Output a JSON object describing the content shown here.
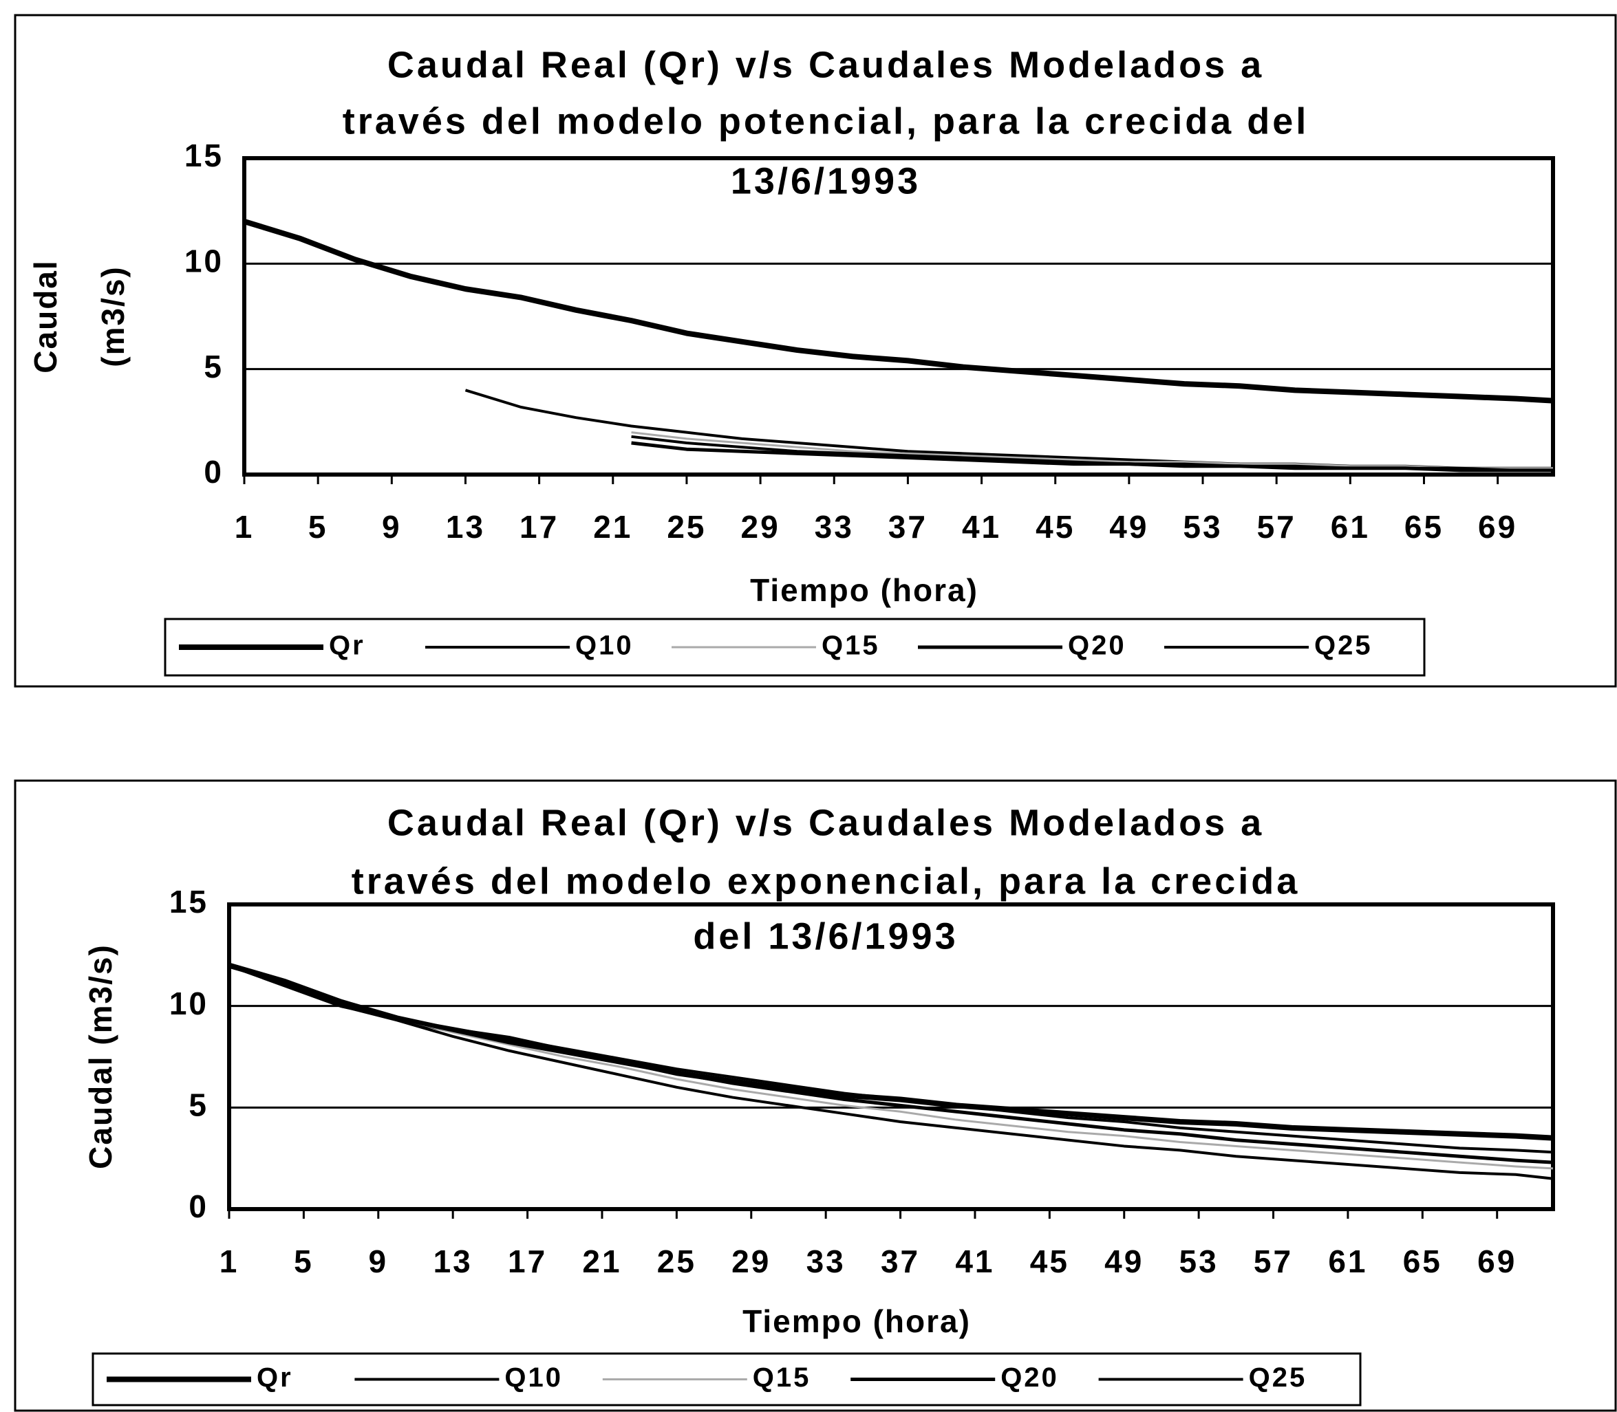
{
  "chart_data": [
    {
      "type": "line",
      "title": [
        "Caudal Real (Qr) v/s Caudales Modelados a",
        "través del modelo potencial, para la crecida del",
        "13/6/1993"
      ],
      "xlabel": "Tiempo (hora)",
      "ylabel": [
        "Caudal",
        "(m3/s)"
      ],
      "x": [
        1,
        4,
        7,
        10,
        13,
        16,
        19,
        22,
        25,
        28,
        31,
        34,
        37,
        40,
        43,
        46,
        49,
        52,
        55,
        58,
        61,
        64,
        67,
        70,
        72
      ],
      "xlim": [
        1,
        72
      ],
      "xticks": [
        1,
        5,
        9,
        13,
        17,
        21,
        25,
        29,
        33,
        37,
        41,
        45,
        49,
        53,
        57,
        61,
        65,
        69
      ],
      "ylim": [
        0,
        15
      ],
      "yticks": [
        0,
        5,
        10,
        15
      ],
      "grid": true,
      "series": [
        {
          "name": "Qr",
          "color": "#000000",
          "values": [
            12,
            11.2,
            10.2,
            9.4,
            8.8,
            8.4,
            7.8,
            7.3,
            6.7,
            6.3,
            5.9,
            5.6,
            5.4,
            5.1,
            4.9,
            4.7,
            4.5,
            4.3,
            4.2,
            4.0,
            3.9,
            3.8,
            3.7,
            3.6,
            3.5
          ]
        },
        {
          "name": "Q10",
          "color": "#000000",
          "values": [
            null,
            null,
            null,
            null,
            4.0,
            3.2,
            2.7,
            2.3,
            2.0,
            1.7,
            1.5,
            1.3,
            1.1,
            1.0,
            0.9,
            0.8,
            0.7,
            0.6,
            0.5,
            0.5,
            0.4,
            0.4,
            0.3,
            0.3,
            0.3
          ]
        },
        {
          "name": "Q15",
          "color": "#aaaaaa",
          "values": [
            null,
            null,
            null,
            null,
            null,
            null,
            null,
            2.0,
            1.7,
            1.5,
            1.3,
            1.1,
            1.0,
            0.9,
            0.8,
            0.7,
            0.6,
            0.6,
            0.5,
            0.5,
            0.4,
            0.4,
            0.3,
            0.3,
            0.3
          ]
        },
        {
          "name": "Q20",
          "color": "#000000",
          "values": [
            null,
            null,
            null,
            null,
            null,
            null,
            null,
            1.5,
            1.2,
            1.1,
            1.0,
            0.9,
            0.8,
            0.7,
            0.6,
            0.5,
            0.5,
            0.4,
            0.4,
            0.3,
            0.3,
            0.3,
            0.2,
            0.2,
            0.2
          ]
        },
        {
          "name": "Q25",
          "color": "#000000",
          "values": [
            null,
            null,
            null,
            null,
            null,
            null,
            null,
            1.8,
            1.5,
            1.3,
            1.1,
            1.0,
            0.9,
            0.8,
            0.7,
            0.6,
            0.5,
            0.5,
            0.4,
            0.4,
            0.3,
            0.3,
            0.3,
            0.2,
            0.2
          ]
        }
      ]
    },
    {
      "type": "line",
      "title": [
        "Caudal Real (Qr) v/s Caudales Modelados a",
        "través del modelo exponencial,  para la crecida",
        "del 13/6/1993"
      ],
      "xlabel": "Tiempo (hora)",
      "ylabel": [
        "Caudal (m3/s)"
      ],
      "x": [
        1,
        4,
        7,
        10,
        13,
        16,
        19,
        22,
        25,
        28,
        31,
        34,
        37,
        40,
        43,
        46,
        49,
        52,
        55,
        58,
        61,
        64,
        67,
        70,
        72
      ],
      "xlim": [
        1,
        72
      ],
      "xticks": [
        1,
        5,
        9,
        13,
        17,
        21,
        25,
        29,
        33,
        37,
        41,
        45,
        49,
        53,
        57,
        61,
        65,
        69
      ],
      "ylim": [
        0,
        15
      ],
      "yticks": [
        0,
        5,
        10,
        15
      ],
      "grid": true,
      "series": [
        {
          "name": "Qr",
          "color": "#000000",
          "values": [
            12,
            11.2,
            10.2,
            9.4,
            8.8,
            8.4,
            7.8,
            7.3,
            6.7,
            6.3,
            5.9,
            5.6,
            5.4,
            5.1,
            4.9,
            4.7,
            4.5,
            4.3,
            4.2,
            4.0,
            3.9,
            3.8,
            3.7,
            3.6,
            3.5
          ]
        },
        {
          "name": "Q10",
          "color": "#000000",
          "values": [
            12,
            11,
            10,
            9.3,
            8.5,
            7.8,
            7.2,
            6.6,
            6.0,
            5.5,
            5.1,
            4.7,
            4.3,
            4.0,
            3.7,
            3.4,
            3.1,
            2.9,
            2.6,
            2.4,
            2.2,
            2.0,
            1.8,
            1.7,
            1.5
          ]
        },
        {
          "name": "Q15",
          "color": "#aaaaaa",
          "values": [
            12,
            11,
            10,
            9.4,
            8.7,
            8.1,
            7.5,
            7.0,
            6.4,
            5.9,
            5.5,
            5.1,
            4.8,
            4.4,
            4.1,
            3.8,
            3.6,
            3.3,
            3.1,
            2.9,
            2.7,
            2.5,
            2.3,
            2.1,
            2.0
          ]
        },
        {
          "name": "Q20",
          "color": "#000000",
          "values": [
            12,
            11,
            10,
            9.4,
            8.8,
            8.2,
            7.7,
            7.2,
            6.7,
            6.2,
            5.8,
            5.4,
            5.1,
            4.8,
            4.5,
            4.2,
            3.9,
            3.7,
            3.4,
            3.2,
            3.0,
            2.8,
            2.6,
            2.4,
            2.3
          ]
        },
        {
          "name": "Q25",
          "color": "#000000",
          "values": [
            12,
            11.1,
            10.1,
            9.4,
            8.9,
            8.4,
            7.9,
            7.4,
            6.9,
            6.5,
            6.1,
            5.7,
            5.4,
            5.1,
            4.8,
            4.5,
            4.3,
            4.0,
            3.8,
            3.6,
            3.4,
            3.2,
            3.0,
            2.9,
            2.8
          ]
        }
      ]
    }
  ]
}
